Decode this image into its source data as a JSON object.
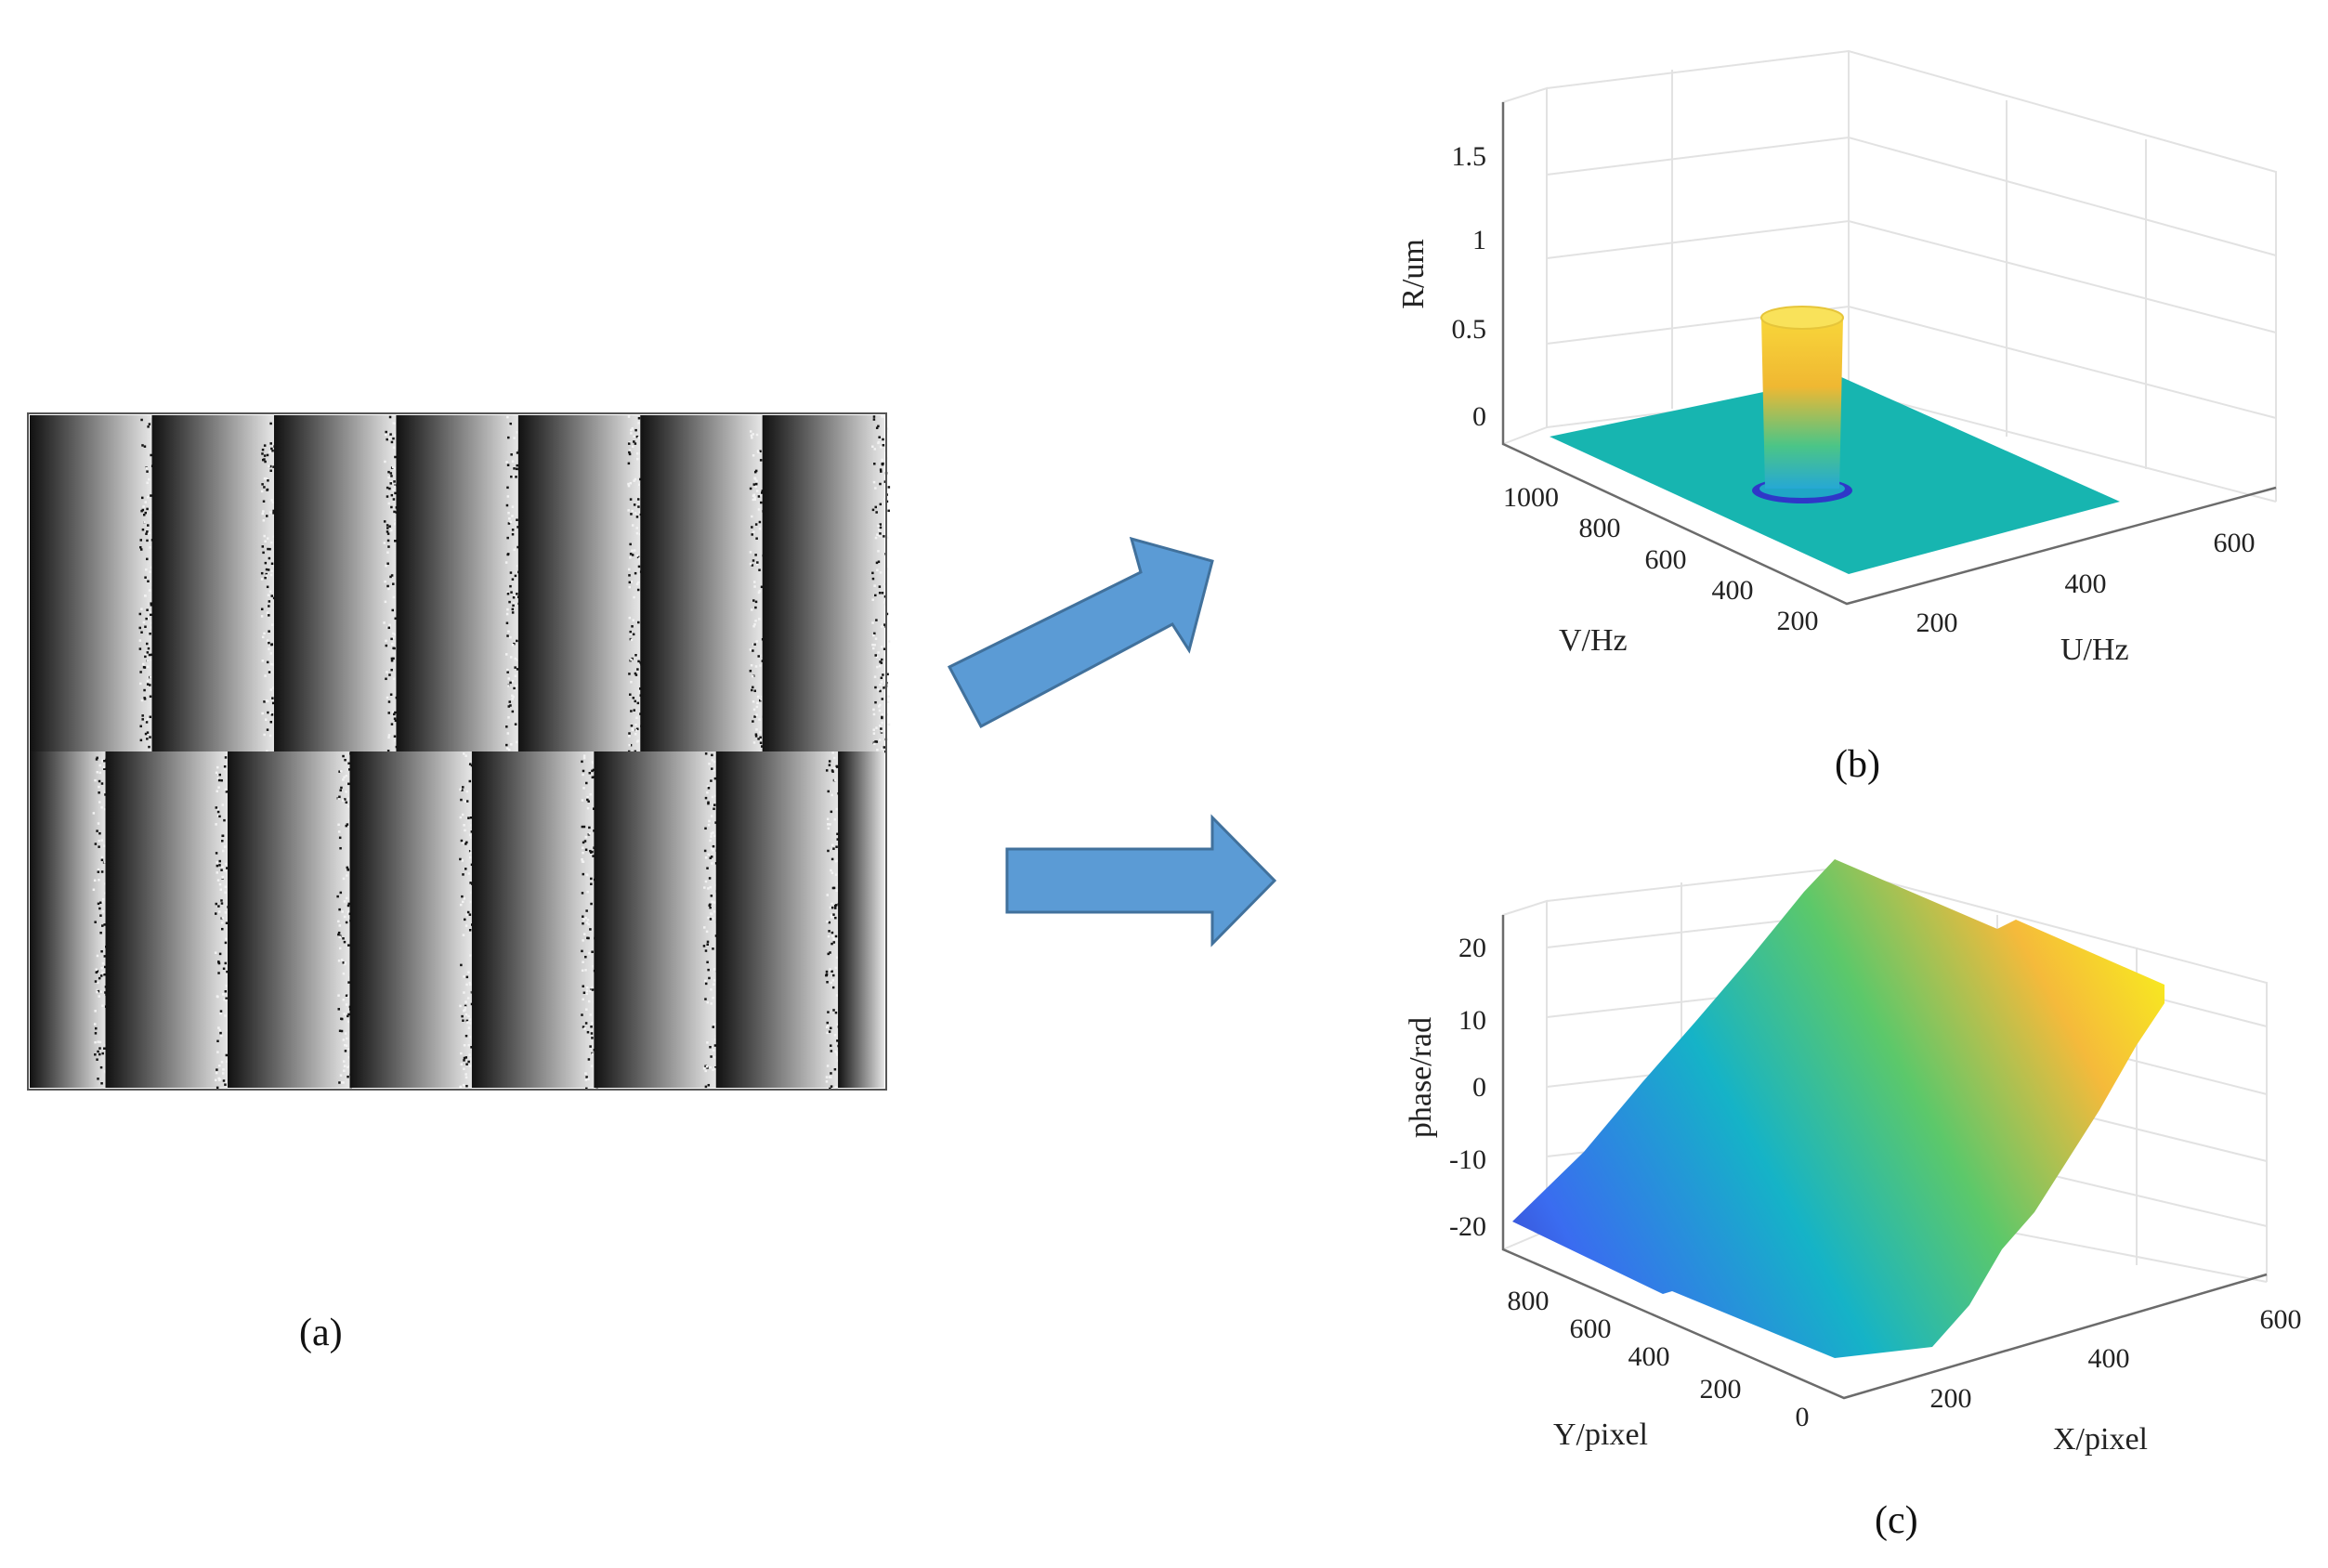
{
  "captions": {
    "a": "(a)",
    "b": "(b)",
    "c": "(c)"
  },
  "colors": {
    "arrow_fill": "#5b9bd5",
    "arrow_stroke": "#41719c",
    "plateau": "#17b5b0",
    "grid": "#e2e2e2",
    "axis": "#6b6b6b"
  },
  "icons": [
    "arrow-right-up-icon",
    "arrow-right-icon"
  ],
  "chart_data": [
    {
      "id": "a",
      "type": "heatmap",
      "description": "wrapped phase fringe image, grayscale sawtooth bands",
      "rows": [
        {
          "periods": 7,
          "phase_offset": 0.0
        },
        {
          "periods": 7,
          "phase_offset": 0.62
        }
      ],
      "colormap": "gray"
    },
    {
      "id": "b",
      "type": "surface",
      "xlabel": "U/Hz",
      "ylabel": "V/Hz",
      "zlabel": "R/um",
      "x_ticks": [
        "200",
        "400",
        "600"
      ],
      "y_ticks": [
        "200",
        "400",
        "600",
        "800",
        "1000"
      ],
      "z_ticks": [
        "0",
        "0.5",
        "1",
        "1.5"
      ],
      "xlim": [
        0,
        700
      ],
      "ylim": [
        0,
        1100
      ],
      "zlim": [
        0,
        1.8
      ],
      "features": {
        "base_level": 0,
        "peak_height": 1.0,
        "peak_center": [
          350,
          600
        ]
      }
    },
    {
      "id": "c",
      "type": "surface",
      "xlabel": "X/pixel",
      "ylabel": "Y/pixel",
      "zlabel": "phase/rad",
      "x_ticks": [
        "200",
        "400",
        "600"
      ],
      "y_ticks": [
        "0",
        "200",
        "400",
        "600",
        "800"
      ],
      "z_ticks": [
        "-20",
        "-10",
        "0",
        "10",
        "20"
      ],
      "xlim": [
        0,
        650
      ],
      "ylim": [
        0,
        900
      ],
      "zlim": [
        -25,
        25
      ],
      "features": {
        "min_phase": -20,
        "max_phase": 22,
        "colormap": "parula"
      }
    }
  ]
}
